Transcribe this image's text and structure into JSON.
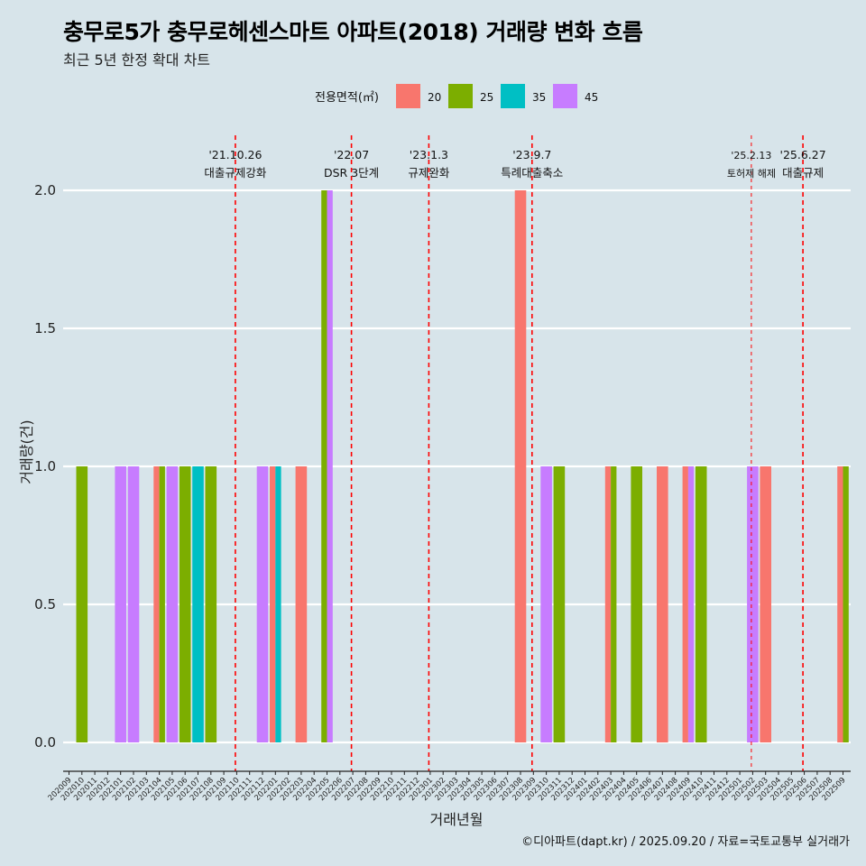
{
  "chart_data": {
    "type": "bar",
    "title": "충무로5가 충무로헤센스마트 아파트(2018) 거래량 변화 흐름",
    "subtitle": "최근 5년 한정 확대 차트",
    "xlabel": "거래년월",
    "ylabel": "거래량(건)",
    "caption": "©디아파트(dapt.kr) / 2025.09.20 / 자료=국토교통부 실거래가",
    "legend_title": "전용면적(㎡)",
    "legend_position": "top",
    "ylim": [
      -0.08,
      2.2
    ],
    "yticks": [
      0.0,
      0.5,
      1.0,
      1.5,
      2.0
    ],
    "ytick_labels": [
      "0.0",
      "0.5",
      "1.0",
      "1.5",
      "2.0"
    ],
    "categories": [
      "202009",
      "202010",
      "202011",
      "202012",
      "202101",
      "202102",
      "202103",
      "202104",
      "202105",
      "202106",
      "202107",
      "202108",
      "202109",
      "202110",
      "202111",
      "202112",
      "202201",
      "202202",
      "202203",
      "202204",
      "202205",
      "202206",
      "202207",
      "202208",
      "202209",
      "202210",
      "202211",
      "202212",
      "202301",
      "202302",
      "202303",
      "202304",
      "202305",
      "202306",
      "202307",
      "202308",
      "202309",
      "202310",
      "202311",
      "202312",
      "202401",
      "202402",
      "202403",
      "202404",
      "202405",
      "202406",
      "202407",
      "202408",
      "202409",
      "202410",
      "202411",
      "202412",
      "202501",
      "202502",
      "202503",
      "202504",
      "202505",
      "202506",
      "202507",
      "202508",
      "202509"
    ],
    "series": [
      {
        "name": "20",
        "color": "#f8766d",
        "values": [
          0,
          0,
          0,
          0,
          0,
          0,
          0,
          1,
          0,
          0,
          0,
          0,
          0,
          0,
          0,
          0,
          1,
          0,
          1,
          0,
          0,
          0,
          0,
          0,
          0,
          0,
          0,
          0,
          0,
          0,
          0,
          0,
          0,
          0,
          0,
          2,
          0,
          0,
          0,
          0,
          0,
          0,
          1,
          0,
          0,
          0,
          1,
          0,
          1,
          0,
          0,
          0,
          0,
          0,
          1,
          0,
          0,
          0,
          0,
          0,
          1
        ]
      },
      {
        "name": "25",
        "color": "#7cae00",
        "values": [
          0,
          1,
          0,
          0,
          0,
          0,
          0,
          1,
          0,
          1,
          0,
          1,
          0,
          0,
          0,
          0,
          0,
          0,
          0,
          0,
          2,
          0,
          0,
          0,
          0,
          0,
          0,
          0,
          0,
          0,
          0,
          0,
          0,
          0,
          0,
          0,
          0,
          0,
          1,
          0,
          0,
          0,
          1,
          0,
          1,
          0,
          0,
          0,
          0,
          1,
          0,
          0,
          0,
          0,
          0,
          0,
          0,
          0,
          0,
          0,
          1
        ]
      },
      {
        "name": "35",
        "color": "#00bfc4",
        "values": [
          0,
          0,
          0,
          0,
          0,
          0,
          0,
          0,
          0,
          0,
          1,
          0,
          0,
          0,
          0,
          0,
          1,
          0,
          0,
          0,
          0,
          0,
          0,
          0,
          0,
          0,
          0,
          0,
          0,
          0,
          0,
          0,
          0,
          0,
          0,
          0,
          0,
          0,
          0,
          0,
          0,
          0,
          0,
          0,
          0,
          0,
          0,
          0,
          0,
          0,
          0,
          0,
          0,
          0,
          0,
          0,
          0,
          0,
          0,
          0,
          0
        ]
      },
      {
        "name": "45",
        "color": "#c77cff",
        "values": [
          0,
          0,
          0,
          0,
          1,
          1,
          0,
          0,
          1,
          0,
          0,
          0,
          0,
          0,
          0,
          1,
          0,
          0,
          0,
          0,
          2,
          0,
          0,
          0,
          0,
          0,
          0,
          0,
          0,
          0,
          0,
          0,
          0,
          0,
          0,
          0,
          0,
          1,
          0,
          0,
          0,
          0,
          0,
          0,
          0,
          0,
          0,
          0,
          1,
          0,
          0,
          0,
          0,
          1,
          0,
          0,
          0,
          0,
          0,
          0,
          0
        ]
      }
    ],
    "annotations": [
      {
        "x": "202110",
        "date": "'21.10.26",
        "text": "대출규제강화",
        "line": "bold"
      },
      {
        "x": "202207",
        "date": "'22.07",
        "text": "DSR 3단계",
        "line": "bold"
      },
      {
        "x": "202301",
        "date": "'23.1.3",
        "text": "규제완화",
        "line": "bold"
      },
      {
        "x": "202309",
        "date": "'23.9.7",
        "text": "특례대출축소",
        "line": "bold"
      },
      {
        "x": "202502",
        "date": "'25.2.13",
        "text": "토허제 해제",
        "line": "thin"
      },
      {
        "x": "202506",
        "date": "'25.6.27",
        "text": "대출규제",
        "line": "bold"
      }
    ]
  }
}
